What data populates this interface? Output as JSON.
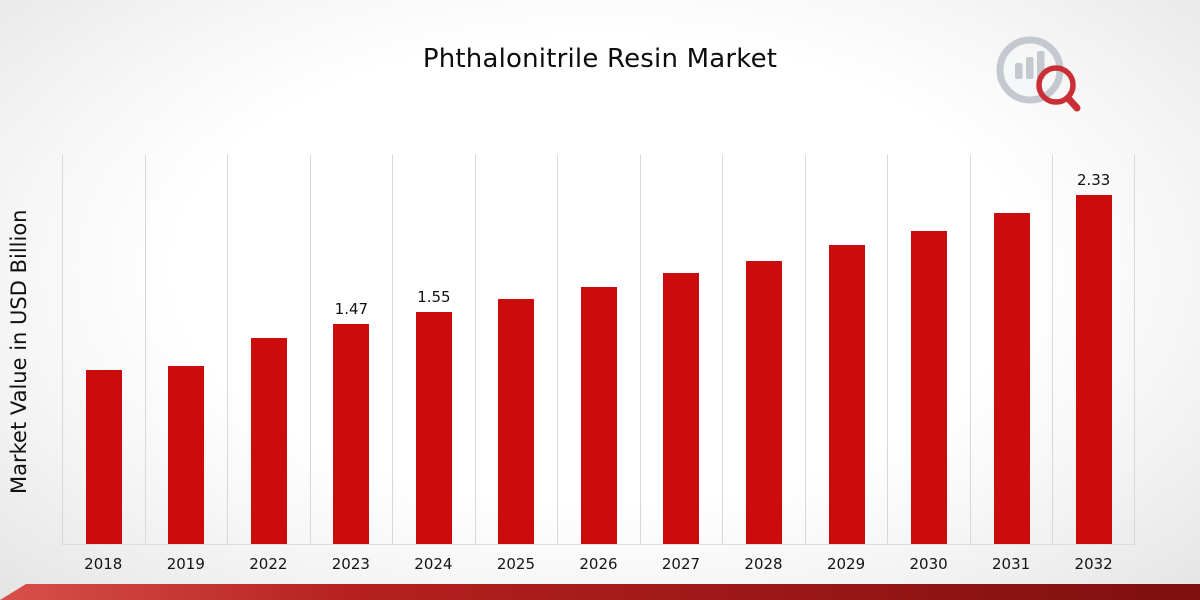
{
  "page": {
    "title": "Phthalonitrile Resin Market"
  },
  "chart_data": {
    "type": "bar",
    "title": "Phthalonitrile Resin Market",
    "xlabel": "",
    "ylabel": "Market Value in USD Billion",
    "categories": [
      "2018",
      "2019",
      "2022",
      "2023",
      "2024",
      "2025",
      "2026",
      "2027",
      "2028",
      "2029",
      "2030",
      "2031",
      "2032"
    ],
    "values": [
      1.16,
      1.19,
      1.38,
      1.47,
      1.55,
      1.64,
      1.72,
      1.81,
      1.89,
      2.0,
      2.09,
      2.21,
      2.33
    ],
    "data_labels": {
      "2023": "1.47",
      "2024": "1.55",
      "2032": "2.33"
    },
    "ylim": [
      0,
      2.6
    ],
    "grid": "vertical-only",
    "legend": "none",
    "bar_color": "#cc0c0c"
  },
  "branding": {
    "logo_icon": "bar-chart-magnifier-logo",
    "logo_gray": "#c2c7cd",
    "logo_red": "#c8252c"
  },
  "footer": {
    "ribbon_colors": [
      "#d8504a",
      "#b5201d",
      "#7f0f10"
    ]
  }
}
